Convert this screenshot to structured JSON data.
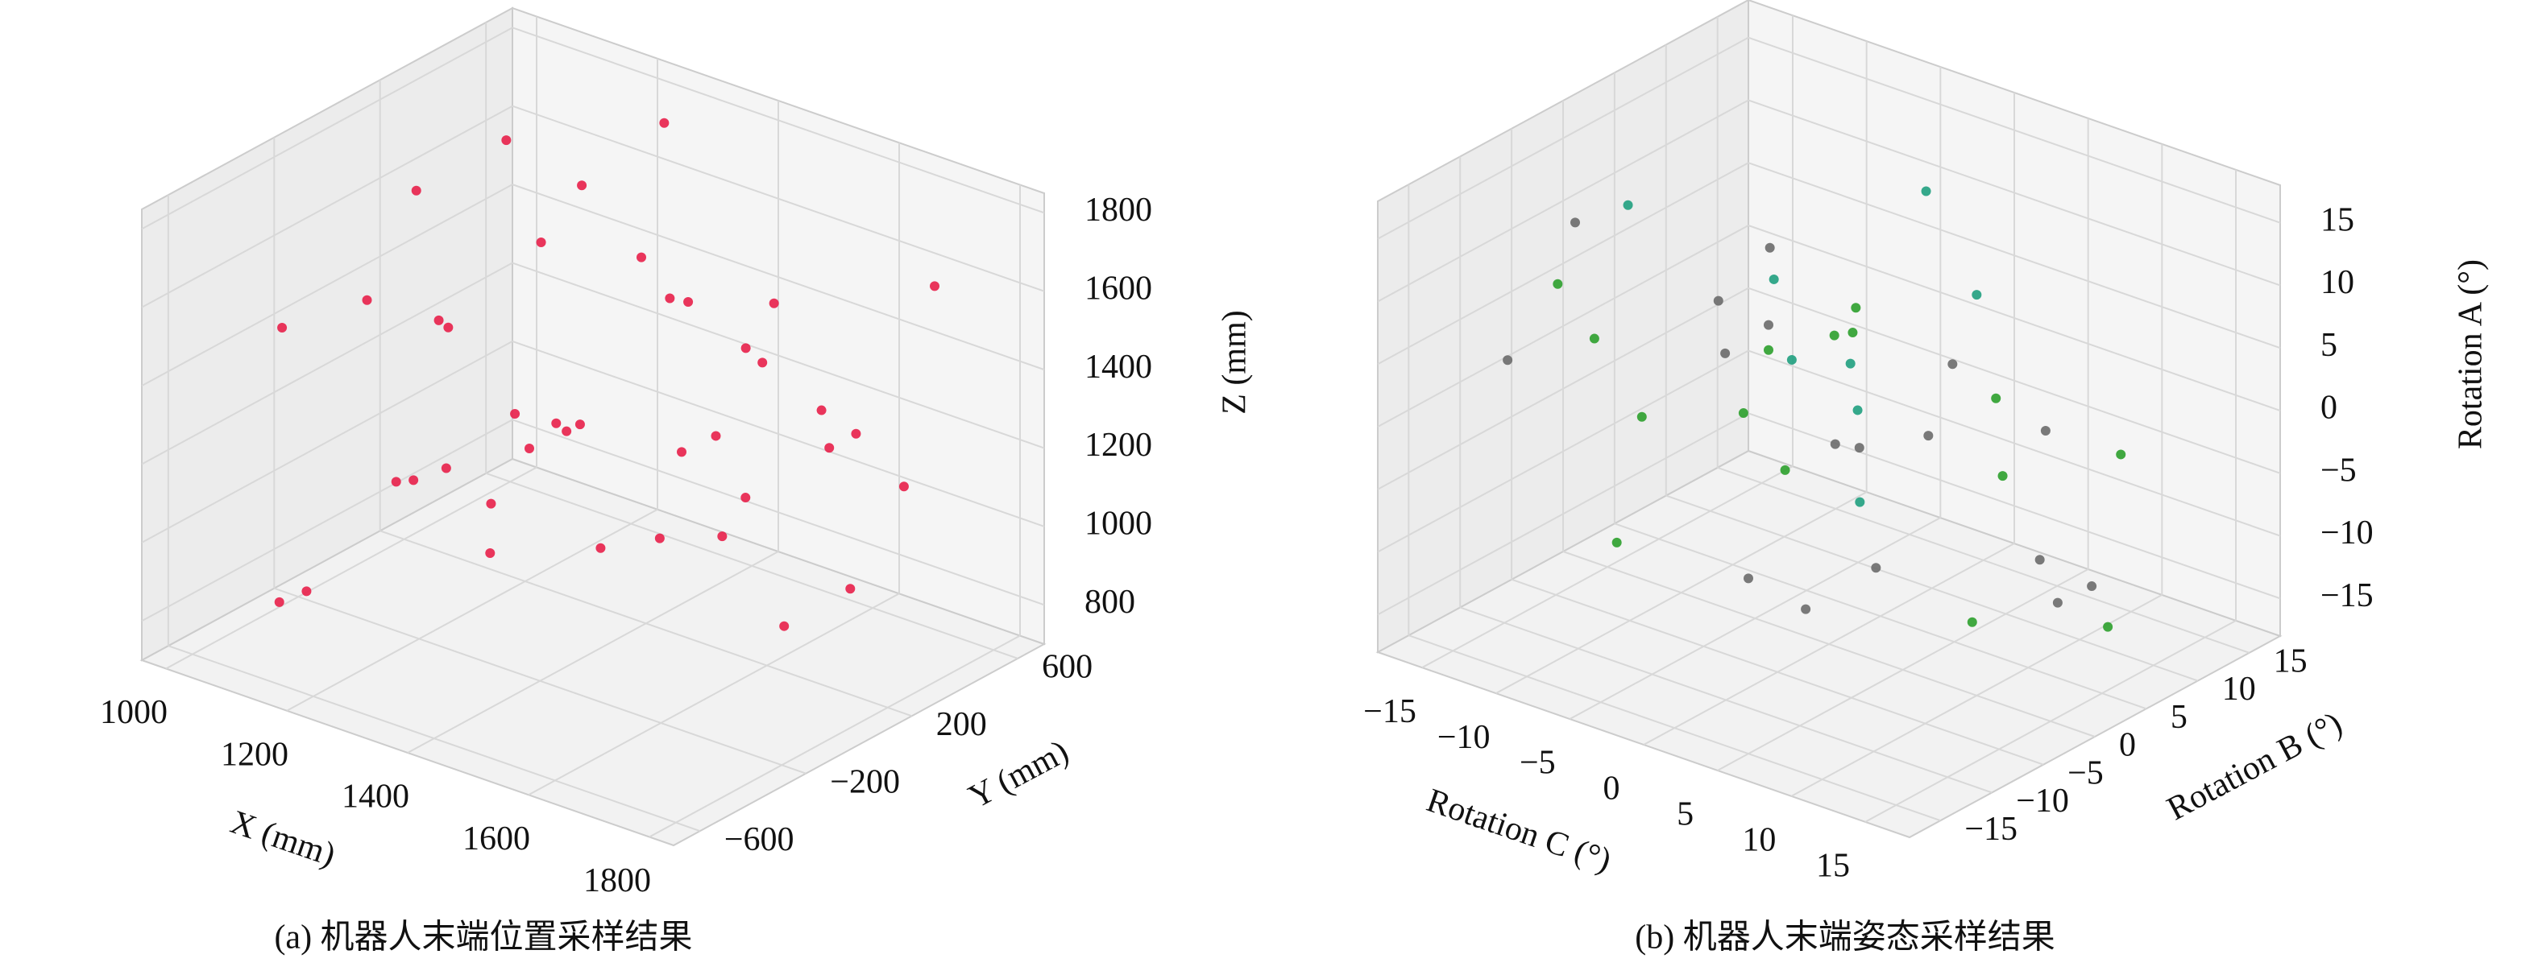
{
  "chart_data": [
    {
      "type": "scatter3d",
      "caption": "(a) 机器人末端位置采样结果",
      "xlabel": "X (mm)",
      "ylabel": "Y (mm)",
      "zlabel": "Z (mm)",
      "xlim": [
        960,
        1840
      ],
      "ylim": [
        -700,
        700
      ],
      "zlim": [
        700,
        1850
      ],
      "xticks": [
        1000,
        1200,
        1400,
        1600,
        1800
      ],
      "yticks": [
        {
          "value": -600,
          "label": "−600"
        },
        {
          "value": -200,
          "label": "−200"
        },
        200,
        600
      ],
      "zticks": [
        800,
        1000,
        1200,
        1400,
        1600,
        1800
      ],
      "color": "#e8204a",
      "x": [
        1100,
        1250,
        1400,
        1550,
        1700,
        1020,
        1180,
        1330,
        1480,
        1620,
        1760,
        1060,
        1210,
        1360,
        1510,
        1660,
        1800,
        1140,
        1290,
        1440,
        1590,
        1740,
        1090,
        1240,
        1390,
        1540,
        1690,
        1030,
        1170,
        1320,
        1470,
        1610,
        1770,
        1120,
        1270,
        1420,
        1570,
        1720,
        1300,
        1450
      ],
      "y": [
        -500,
        300,
        -100,
        550,
        -350,
        200,
        -580,
        450,
        0,
        -250,
        150,
        580,
        -420,
        120,
        -300,
        400,
        -50,
        -150,
        520,
        -480,
        250,
        -200,
        380,
        -20,
        600,
        -560,
        60,
        -330,
        230,
        -400,
        480,
        -120,
        330,
        500,
        -250,
        -600,
        100,
        560,
        -450,
        350
      ],
      "z": [
        850,
        1700,
        1300,
        1100,
        1500,
        1600,
        950,
        1400,
        1750,
        1200,
        1000,
        1350,
        1650,
        900,
        1450,
        1250,
        1550,
        1050,
        1800,
        1150,
        1600,
        1350,
        1700,
        1000,
        1250,
        1500,
        900,
        1450,
        1100,
        1650,
        1300,
        1750,
        1200,
        950,
        1550,
        1400,
        1050,
        1600,
        1250,
        1150
      ]
    },
    {
      "type": "scatter3d",
      "caption": "(b) 机器人末端姿态采样结果",
      "xlabel": "Rotation C (°)",
      "ylabel": "Rotation B (°)",
      "zlabel": "Rotation A (°)",
      "xlim": [
        -18,
        18
      ],
      "ylim": [
        -18,
        18
      ],
      "zlim": [
        -18,
        18
      ],
      "xticks": [
        {
          "value": -15,
          "label": "−15"
        },
        {
          "value": -10,
          "label": "−10"
        },
        {
          "value": -5,
          "label": "−5"
        },
        0,
        5,
        10,
        15
      ],
      "yticks": [
        {
          "value": -15,
          "label": "−15"
        },
        {
          "value": -10,
          "label": "−10"
        },
        {
          "value": -5,
          "label": "−5"
        },
        0,
        5,
        10,
        15
      ],
      "zticks": [
        {
          "value": -15,
          "label": "−15"
        },
        {
          "value": -10,
          "label": "−10"
        },
        {
          "value": -5,
          "label": "−5"
        },
        0,
        5,
        10,
        15
      ],
      "color": "#6b6b6b",
      "colors": [
        "#6b6b6b",
        "#2ca02c",
        "#20a080",
        "#6b6b6b",
        "#2ca02c",
        "#6b6b6b",
        "#20a080",
        "#2ca02c",
        "#6b6b6b",
        "#2ca02c",
        "#6b6b6b",
        "#20a080",
        "#2ca02c",
        "#6b6b6b",
        "#2ca02c",
        "#6b6b6b",
        "#20a080",
        "#2ca02c",
        "#6b6b6b",
        "#2ca02c",
        "#6b6b6b",
        "#20a080",
        "#6b6b6b",
        "#2ca02c",
        "#6b6b6b",
        "#2ca02c",
        "#20a080",
        "#6b6b6b",
        "#2ca02c",
        "#6b6b6b",
        "#20a080",
        "#2ca02c",
        "#6b6b6b",
        "#2ca02c",
        "#6b6b6b",
        "#20a080",
        "#2ca02c",
        "#6b6b6b",
        "#2ca02c",
        "#6b6b6b"
      ],
      "x": [
        -14,
        -10,
        -6,
        -2,
        2,
        6,
        10,
        14,
        -12,
        -8,
        -4,
        0,
        4,
        8,
        12,
        -13,
        -9,
        -5,
        -1,
        3,
        7,
        11,
        15,
        -11,
        -7,
        -3,
        1,
        5,
        9,
        13,
        -15,
        -6,
        0,
        6,
        12,
        -10,
        -2,
        4,
        10,
        -4
      ],
      "y": [
        10,
        -12,
        5,
        -3,
        14,
        -8,
        0,
        7,
        -14,
        12,
        -5,
        3,
        -10,
        9,
        -1,
        -6,
        15,
        -11,
        6,
        -2,
        11,
        -13,
        4,
        -7,
        13,
        -4,
        8,
        -15,
        1,
        -9,
        2,
        -12,
        12,
        -6,
        5,
        9,
        -3,
        -8,
        14,
        0
      ],
      "z": [
        -5,
        12,
        0,
        8,
        -10,
        4,
        14,
        -14,
        6,
        -2,
        10,
        -8,
        2,
        -12,
        7,
        13,
        -6,
        3,
        -15,
        9,
        -3,
        11,
        -9,
        5,
        -11,
        1,
        15,
        -4,
        -13,
        8,
        10,
        -7,
        -1,
        14,
        -12,
        3,
        6,
        -10,
        -5,
        12
      ]
    }
  ]
}
